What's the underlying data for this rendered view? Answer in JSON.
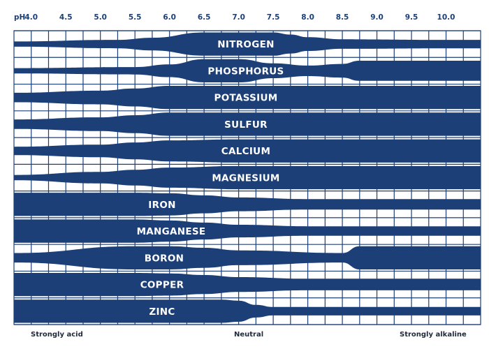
{
  "chart_data": {
    "type": "area",
    "x_label": "pH",
    "x_ticks": [
      "4.0",
      "4.5",
      "5.0",
      "5.5",
      "6.0",
      "6.5",
      "7.0",
      "7.5",
      "8.0",
      "8.5",
      "9.0",
      "9.5",
      "10.0"
    ],
    "xlim": [
      3.75,
      10.5
    ],
    "y_scale": "relative availability, 0 = none, 1 = maximum band width",
    "bottom_labels": {
      "left": "Strongly acid",
      "center": "Neutral",
      "right": "Strongly alkaline"
    },
    "series": [
      {
        "name": "NITROGEN",
        "x": [
          3.75,
          5.25,
          5.75,
          6.5,
          7.5,
          7.75,
          8.0,
          8.5,
          10.0,
          10.5
        ],
        "values": [
          0.15,
          0.3,
          0.5,
          1.0,
          1.0,
          0.8,
          0.55,
          0.35,
          0.3,
          0.3
        ]
      },
      {
        "name": "PHOSPHORUS",
        "x": [
          3.75,
          5.5,
          6.0,
          6.5,
          7.0,
          7.5,
          8.0,
          8.5,
          8.75,
          10.0,
          10.5
        ],
        "values": [
          0.15,
          0.25,
          0.5,
          1.0,
          1.0,
          0.6,
          0.4,
          0.55,
          0.85,
          0.85,
          0.85
        ]
      },
      {
        "name": "POTASSIUM",
        "x": [
          3.75,
          5.0,
          5.5,
          6.0,
          10.5
        ],
        "values": [
          0.35,
          0.55,
          0.75,
          1.0,
          1.0
        ]
      },
      {
        "name": "SULFUR",
        "x": [
          3.75,
          5.0,
          5.5,
          6.0,
          10.5
        ],
        "values": [
          0.35,
          0.55,
          0.75,
          1.0,
          1.0
        ]
      },
      {
        "name": "CALCIUM",
        "x": [
          3.75,
          5.0,
          5.5,
          6.0,
          7.0,
          10.5
        ],
        "values": [
          0.3,
          0.5,
          0.7,
          0.9,
          1.0,
          1.0
        ]
      },
      {
        "name": "MAGNESIUM",
        "x": [
          3.75,
          5.0,
          5.5,
          6.0,
          7.0,
          10.5
        ],
        "values": [
          0.15,
          0.45,
          0.65,
          0.85,
          1.0,
          1.0
        ]
      },
      {
        "name": "IRON",
        "x": [
          3.75,
          5.5,
          6.0,
          6.5,
          7.0,
          8.0,
          10.5
        ],
        "values": [
          1.0,
          1.0,
          0.95,
          0.75,
          0.55,
          0.4,
          0.4
        ]
      },
      {
        "name": "MANGANESE",
        "x": [
          3.75,
          5.5,
          6.0,
          6.5,
          7.0,
          8.0,
          10.5
        ],
        "values": [
          1.0,
          1.0,
          0.9,
          0.7,
          0.5,
          0.35,
          0.35
        ]
      },
      {
        "name": "BORON",
        "x": [
          3.75,
          5.5,
          6.0,
          6.5,
          7.0,
          8.5,
          8.75,
          10.5
        ],
        "values": [
          0.35,
          1.0,
          1.0,
          0.85,
          0.6,
          0.35,
          1.0,
          1.0
        ]
      },
      {
        "name": "COPPER",
        "x": [
          3.75,
          5.5,
          6.0,
          6.5,
          7.0,
          8.0,
          10.5
        ],
        "values": [
          1.0,
          1.0,
          0.95,
          0.8,
          0.6,
          0.45,
          0.45
        ]
      },
      {
        "name": "ZINC",
        "x": [
          3.75,
          6.0,
          6.75,
          7.0,
          7.25,
          7.5,
          10.5
        ],
        "values": [
          1.0,
          1.0,
          1.0,
          0.9,
          0.5,
          0.3,
          0.3
        ]
      }
    ],
    "grid": true,
    "colors": {
      "band": "#1c3f77",
      "grid": "#1c3f77",
      "label": "#ffffff",
      "tick": "#1c3f77"
    }
  }
}
